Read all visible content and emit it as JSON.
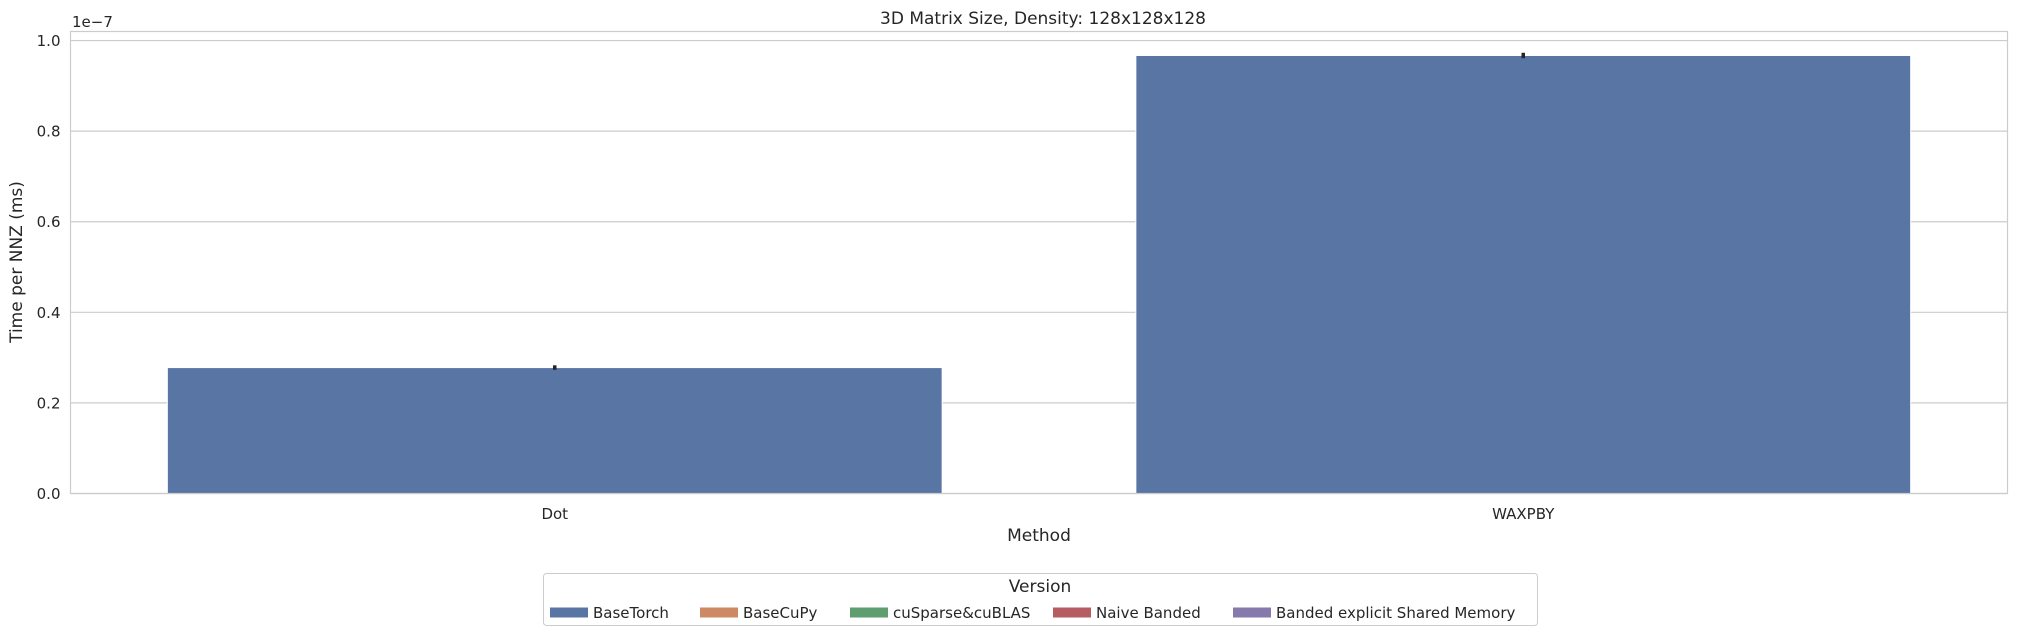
{
  "chart_data": {
    "type": "bar",
    "title": "3D Matrix Size, Density: 128x128x128",
    "xlabel": "Method",
    "ylabel": "Time per NNZ (ms)",
    "y_scale_label": "1e−7",
    "categories": [
      "Dot",
      "WAXPBY"
    ],
    "ylim": [
      0,
      1.02e-07
    ],
    "yticks": [
      0,
      2e-08,
      4e-08,
      6e-08,
      8e-08,
      1e-07
    ],
    "ytick_labels": [
      "0.0",
      "0.2",
      "0.4",
      "0.6",
      "0.8",
      "1.0"
    ],
    "grid": "y",
    "series": [
      {
        "name": "BaseTorch",
        "color": "#5975a4",
        "values": [
          2.78e-08,
          9.67e-08
        ],
        "err": [
          5e-10,
          6e-10
        ]
      },
      {
        "name": "BaseCuPy",
        "color": "#cc8963",
        "values": [
          null,
          null
        ]
      },
      {
        "name": "cuSparse&cuBLAS",
        "color": "#5f9e6e",
        "values": [
          null,
          null
        ]
      },
      {
        "name": "Naive Banded",
        "color": "#b55d60",
        "values": [
          null,
          null
        ]
      },
      {
        "name": "Banded explicit Shared Memory",
        "color": "#857aab",
        "values": [
          null,
          null
        ]
      }
    ],
    "legend": {
      "title": "Version",
      "placement": "bottom-center"
    }
  }
}
